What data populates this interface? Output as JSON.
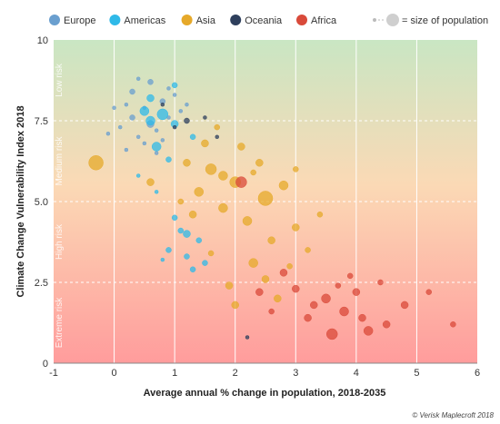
{
  "chart_data": {
    "type": "scatter",
    "title": "",
    "xlabel": "Average annual % change in population, 2018-2035",
    "ylabel": "Climate Change Vulnerability Index 2018",
    "xlim": [
      -1,
      6
    ],
    "ylim": [
      0,
      10
    ],
    "x_ticks": [
      "-1",
      "0",
      "1",
      "2",
      "3",
      "4",
      "5",
      "6"
    ],
    "y_ticks": [
      "0",
      "2.5",
      "5.0",
      "7.5",
      "10"
    ],
    "grid": true,
    "legend_position": "top",
    "size_legend": "= size of population",
    "risk_bands": [
      "Low risk",
      "Medium risk",
      "High risk",
      "Extreme risk"
    ],
    "credit": "© Verisk Maplecroft 2018",
    "colors": {
      "Europe": "#6a9fcf",
      "Americas": "#2fb9e8",
      "Asia": "#e6a92a",
      "Oceania": "#2e3f5c",
      "Africa": "#d94a3a",
      "band_top": "#c9e6c3",
      "band_bottom": "#ff9c9c"
    },
    "series": [
      {
        "name": "Europe",
        "points": [
          [
            0.1,
            7.3,
            2
          ],
          [
            0.3,
            8.4,
            3
          ],
          [
            0.5,
            7.9,
            2
          ],
          [
            0.6,
            8.7,
            3
          ],
          [
            0.7,
            7.2,
            2
          ],
          [
            0.8,
            8.1,
            3
          ],
          [
            0.9,
            7.6,
            2
          ],
          [
            0.2,
            8.0,
            2
          ],
          [
            0.4,
            7.0,
            2
          ],
          [
            1.0,
            8.3,
            2
          ],
          [
            0.5,
            6.8,
            2
          ],
          [
            0.7,
            6.5,
            2
          ],
          [
            0.3,
            7.6,
            3
          ],
          [
            1.1,
            7.8,
            2
          ],
          [
            0.0,
            7.9,
            2
          ],
          [
            0.6,
            7.4,
            4
          ],
          [
            0.8,
            6.9,
            2
          ],
          [
            1.2,
            8.0,
            2
          ],
          [
            0.4,
            8.8,
            2
          ],
          [
            0.9,
            8.5,
            2
          ],
          [
            -0.1,
            7.1,
            2
          ],
          [
            0.2,
            6.6,
            2
          ]
        ]
      },
      {
        "name": "Americas",
        "points": [
          [
            0.6,
            7.5,
            5
          ],
          [
            0.8,
            7.7,
            6
          ],
          [
            0.5,
            7.8,
            5
          ],
          [
            1.0,
            7.4,
            4
          ],
          [
            0.7,
            6.7,
            5
          ],
          [
            0.9,
            6.3,
            3
          ],
          [
            1.1,
            4.1,
            3
          ],
          [
            0.9,
            3.5,
            3
          ],
          [
            1.2,
            3.3,
            3
          ],
          [
            1.3,
            2.9,
            3
          ],
          [
            0.8,
            3.2,
            2
          ],
          [
            1.0,
            4.5,
            3
          ],
          [
            1.4,
            3.8,
            3
          ],
          [
            1.2,
            4.0,
            4
          ],
          [
            0.6,
            8.2,
            4
          ],
          [
            1.0,
            8.6,
            3
          ],
          [
            0.4,
            5.8,
            2
          ],
          [
            1.5,
            3.1,
            3
          ],
          [
            0.7,
            5.3,
            2
          ],
          [
            1.3,
            7.0,
            3
          ]
        ]
      },
      {
        "name": "Asia",
        "points": [
          [
            -0.3,
            6.2,
            8
          ],
          [
            2.0,
            5.6,
            6
          ],
          [
            2.5,
            5.1,
            8
          ],
          [
            1.6,
            6.0,
            6
          ],
          [
            1.8,
            4.8,
            5
          ],
          [
            2.2,
            4.4,
            5
          ],
          [
            2.6,
            3.8,
            4
          ],
          [
            2.8,
            5.5,
            5
          ],
          [
            1.5,
            6.8,
            4
          ],
          [
            1.7,
            7.3,
            3
          ],
          [
            2.4,
            6.2,
            4
          ],
          [
            3.0,
            4.2,
            4
          ],
          [
            2.3,
            3.1,
            5
          ],
          [
            1.9,
            2.4,
            4
          ],
          [
            2.7,
            2.0,
            4
          ],
          [
            1.4,
            5.3,
            5
          ],
          [
            2.1,
            6.7,
            4
          ],
          [
            2.9,
            3.0,
            3
          ],
          [
            1.3,
            4.6,
            4
          ],
          [
            2.0,
            1.8,
            4
          ],
          [
            1.6,
            3.4,
            3
          ],
          [
            3.2,
            3.5,
            3
          ],
          [
            2.5,
            2.6,
            4
          ],
          [
            1.8,
            5.8,
            5
          ],
          [
            3.4,
            4.6,
            3
          ],
          [
            1.1,
            5.0,
            3
          ],
          [
            2.3,
            5.9,
            3
          ],
          [
            0.6,
            5.6,
            4
          ],
          [
            3.0,
            6.0,
            3
          ],
          [
            1.2,
            6.2,
            4
          ]
        ]
      },
      {
        "name": "Oceania",
        "points": [
          [
            1.2,
            7.5,
            3
          ],
          [
            1.5,
            7.6,
            2
          ],
          [
            1.0,
            7.3,
            2
          ],
          [
            0.8,
            8.0,
            2
          ],
          [
            1.7,
            7.0,
            2
          ],
          [
            2.2,
            0.8,
            2
          ]
        ]
      },
      {
        "name": "Africa",
        "points": [
          [
            2.1,
            5.6,
            6
          ],
          [
            3.3,
            1.8,
            4
          ],
          [
            3.6,
            0.9,
            6
          ],
          [
            4.2,
            1.0,
            5
          ],
          [
            3.8,
            1.6,
            5
          ],
          [
            4.5,
            1.2,
            4
          ],
          [
            3.0,
            2.3,
            4
          ],
          [
            3.5,
            2.0,
            5
          ],
          [
            4.0,
            2.2,
            4
          ],
          [
            2.8,
            2.8,
            4
          ],
          [
            4.8,
            1.8,
            4
          ],
          [
            5.2,
            2.2,
            3
          ],
          [
            3.2,
            1.4,
            4
          ],
          [
            2.6,
            1.6,
            3
          ],
          [
            4.4,
            2.5,
            3
          ],
          [
            3.9,
            2.7,
            3
          ],
          [
            5.6,
            1.2,
            3
          ],
          [
            4.1,
            1.4,
            4
          ],
          [
            3.7,
            2.4,
            3
          ],
          [
            2.4,
            2.2,
            4
          ]
        ]
      }
    ]
  }
}
